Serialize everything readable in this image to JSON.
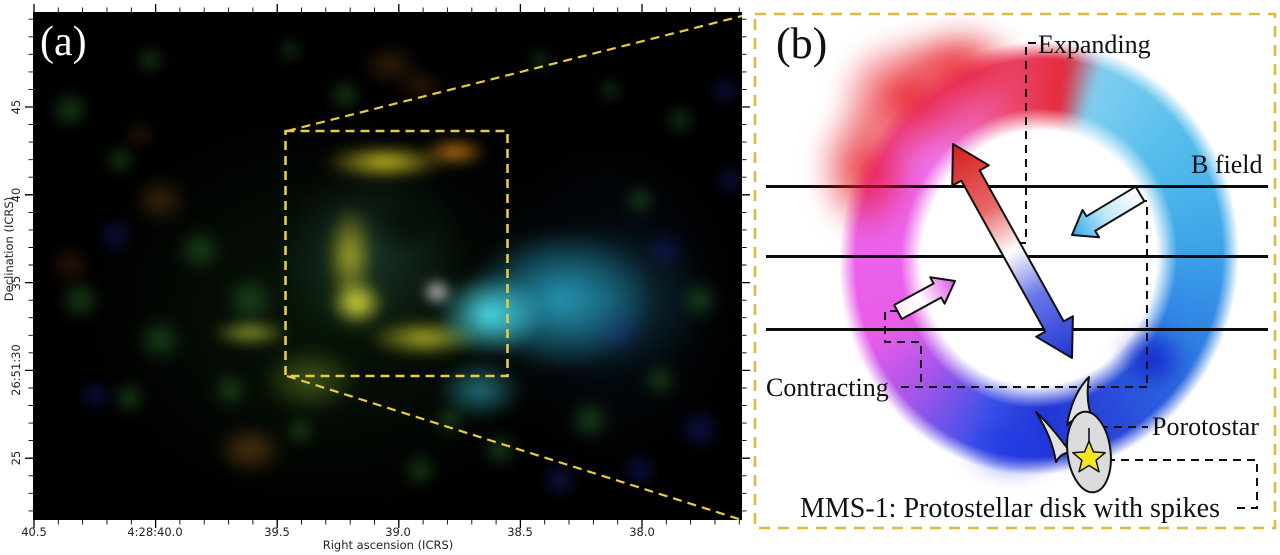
{
  "panel_a": {
    "label": "(a)",
    "xlabel": "Right ascension (ICRS)",
    "ylabel": "Declination (ICRS)",
    "xticks": [
      "40.5",
      "4:28:40.0",
      "39.5",
      "39.0",
      "38.5",
      "38.0"
    ],
    "yticks": [
      "45",
      "40",
      "35",
      "26:51:30",
      "25"
    ]
  },
  "panel_b": {
    "label": "(b)",
    "expanding_label": "Expanding",
    "b_field_label": "B field",
    "contracting_label": "Contracting",
    "protostar_label": "Porotostar",
    "caption": "MMS-1: Protostellar disk with spikes",
    "colors": {
      "zoom_box_dash": "#e6c33c",
      "red_lobe": "#e42939",
      "cyan_lobe": "#49b2e8",
      "magenta_lobe": "#ee66ee",
      "deep_blue_lobe": "#2336d4",
      "star_yellow": "#f5e522",
      "disk_gray": "#dcdcdc"
    }
  }
}
